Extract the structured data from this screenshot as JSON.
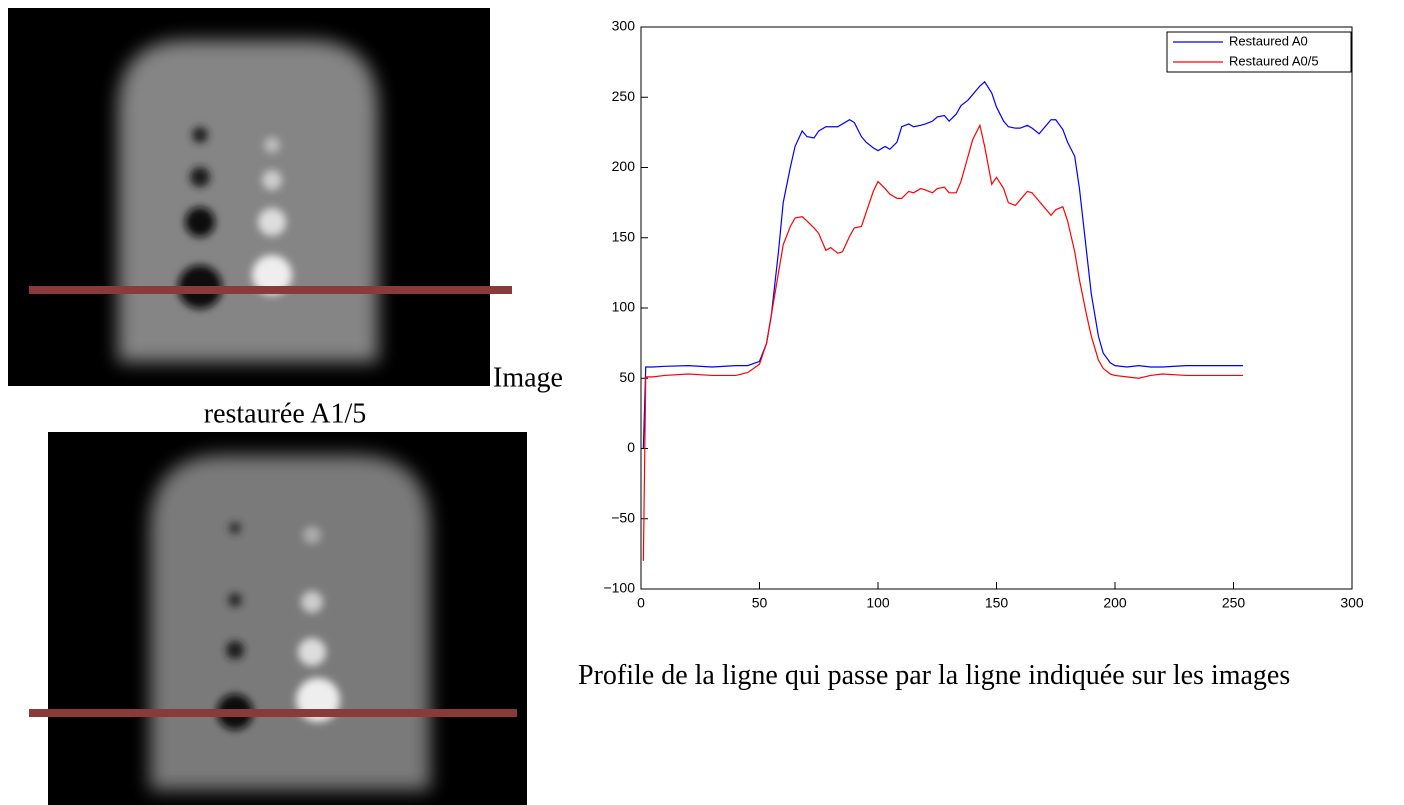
{
  "chart_data": {
    "type": "line",
    "x": [
      1,
      2,
      3,
      5,
      10,
      20,
      30,
      40,
      45,
      50,
      53,
      55,
      58,
      60,
      63,
      65,
      68,
      70,
      73,
      75,
      78,
      80,
      83,
      85,
      88,
      90,
      93,
      95,
      98,
      100,
      103,
      105,
      108,
      110,
      113,
      115,
      118,
      120,
      123,
      125,
      128,
      130,
      133,
      135,
      138,
      140,
      143,
      145,
      148,
      150,
      153,
      155,
      158,
      160,
      163,
      165,
      168,
      170,
      173,
      175,
      178,
      180,
      183,
      185,
      188,
      190,
      193,
      195,
      198,
      200,
      205,
      210,
      215,
      220,
      230,
      240,
      254
    ],
    "series": [
      {
        "name": "Restaured A0",
        "color": "#0000ff",
        "values": [
          0,
          58,
          58,
          58,
          58.5,
          59,
          58,
          59,
          59,
          62,
          75,
          95,
          140,
          175,
          200,
          215,
          226,
          222,
          221,
          226,
          229,
          229,
          229,
          231,
          234,
          232,
          222,
          218,
          214,
          212,
          215,
          213,
          218,
          229,
          231,
          229,
          230,
          231,
          233,
          236,
          237,
          233,
          238,
          244,
          248,
          252,
          258,
          261,
          253,
          243,
          233,
          229,
          228,
          228,
          230,
          228,
          224,
          228,
          234,
          234,
          227,
          218,
          208,
          185,
          140,
          110,
          80,
          68,
          61,
          59,
          58,
          59,
          58,
          58,
          59,
          59,
          59
        ]
      },
      {
        "name": "Restaured A0/5",
        "color": "#ff0000",
        "values": [
          -80,
          51,
          51,
          51,
          52,
          53,
          52,
          52,
          54,
          60,
          75,
          95,
          125,
          145,
          158,
          164,
          165,
          162,
          157,
          153,
          141,
          143,
          139,
          140,
          151,
          157,
          158,
          168,
          183,
          190,
          185,
          181,
          178,
          178,
          183,
          182,
          185,
          184,
          182,
          185,
          186,
          182,
          182,
          190,
          208,
          220,
          230,
          215,
          188,
          193,
          185,
          175,
          173,
          177,
          183,
          182,
          176,
          172,
          166,
          170,
          172,
          162,
          140,
          120,
          95,
          80,
          63,
          57,
          53,
          52,
          51,
          50,
          52,
          53,
          52,
          52,
          52
        ]
      }
    ],
    "xlim": [
      0,
      300
    ],
    "xticks": [
      0,
      50,
      100,
      150,
      200,
      250,
      300
    ],
    "ylim": [
      -100,
      300
    ],
    "yticks": [
      {
        "value": -100,
        "label": "−100"
      },
      {
        "value": -50,
        "label": "−50"
      },
      0,
      50,
      100,
      150,
      200,
      250,
      300
    ],
    "legend": "upper right"
  },
  "document": {
    "image_label": "Image",
    "image_caption": "restaurée A1/5",
    "profile_caption": "Profile de la ligne qui passe par la ligne indiquée sur les images"
  }
}
